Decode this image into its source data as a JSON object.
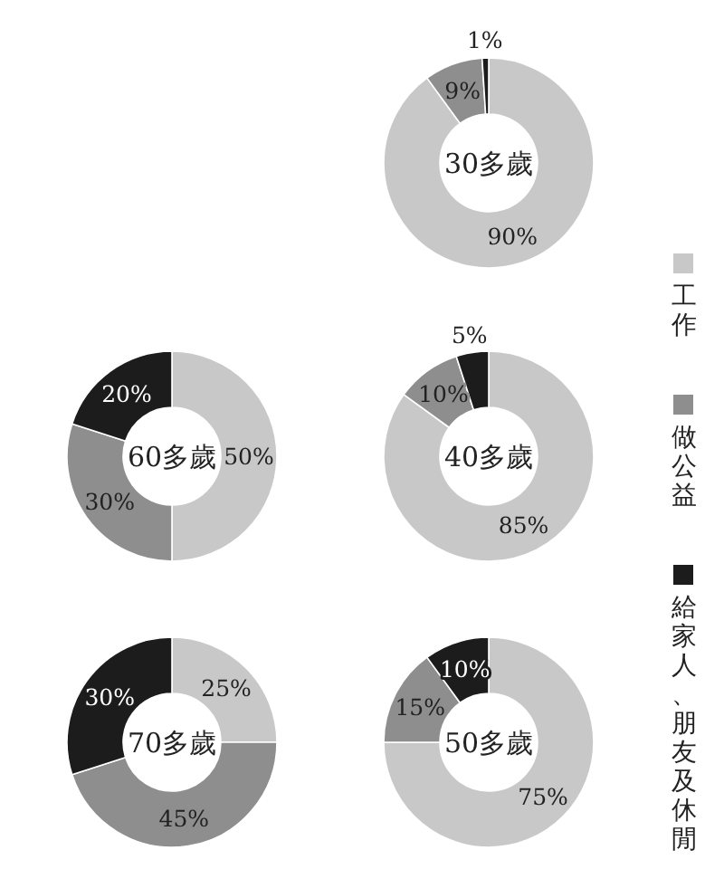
{
  "chart_data": [
    {
      "type": "donut",
      "title": "30多歲",
      "categories": [
        "工作",
        "做公益",
        "給家人、朋友及休閒"
      ],
      "values": [
        90,
        9,
        1
      ],
      "value_labels": [
        "90%",
        "9%",
        "1%"
      ],
      "colors": [
        "#c8c8c8",
        "#8e8e8e",
        "#1c1c1c"
      ],
      "legend": "right"
    },
    {
      "type": "donut",
      "title": "60多歲",
      "values": [
        50,
        30,
        20
      ],
      "value_labels": [
        "50%",
        "30%",
        "20%"
      ],
      "colors": [
        "#c8c8c8",
        "#8e8e8e",
        "#1c1c1c"
      ]
    },
    {
      "type": "donut",
      "title": "40多歲",
      "values": [
        85,
        10,
        5
      ],
      "value_labels": [
        "85%",
        "10%",
        "5%"
      ],
      "colors": [
        "#c8c8c8",
        "#8e8e8e",
        "#1c1c1c"
      ]
    },
    {
      "type": "donut",
      "title": "70多歲",
      "values": [
        25,
        45,
        30
      ],
      "value_labels": [
        "25%",
        "45%",
        "30%"
      ],
      "colors": [
        "#c8c8c8",
        "#8e8e8e",
        "#1c1c1c"
      ]
    },
    {
      "type": "donut",
      "title": "50多歲",
      "values": [
        75,
        15,
        10
      ],
      "value_labels": [
        "75%",
        "15%",
        "10%"
      ],
      "colors": [
        "#c8c8c8",
        "#8e8e8e",
        "#1c1c1c"
      ]
    }
  ]
}
